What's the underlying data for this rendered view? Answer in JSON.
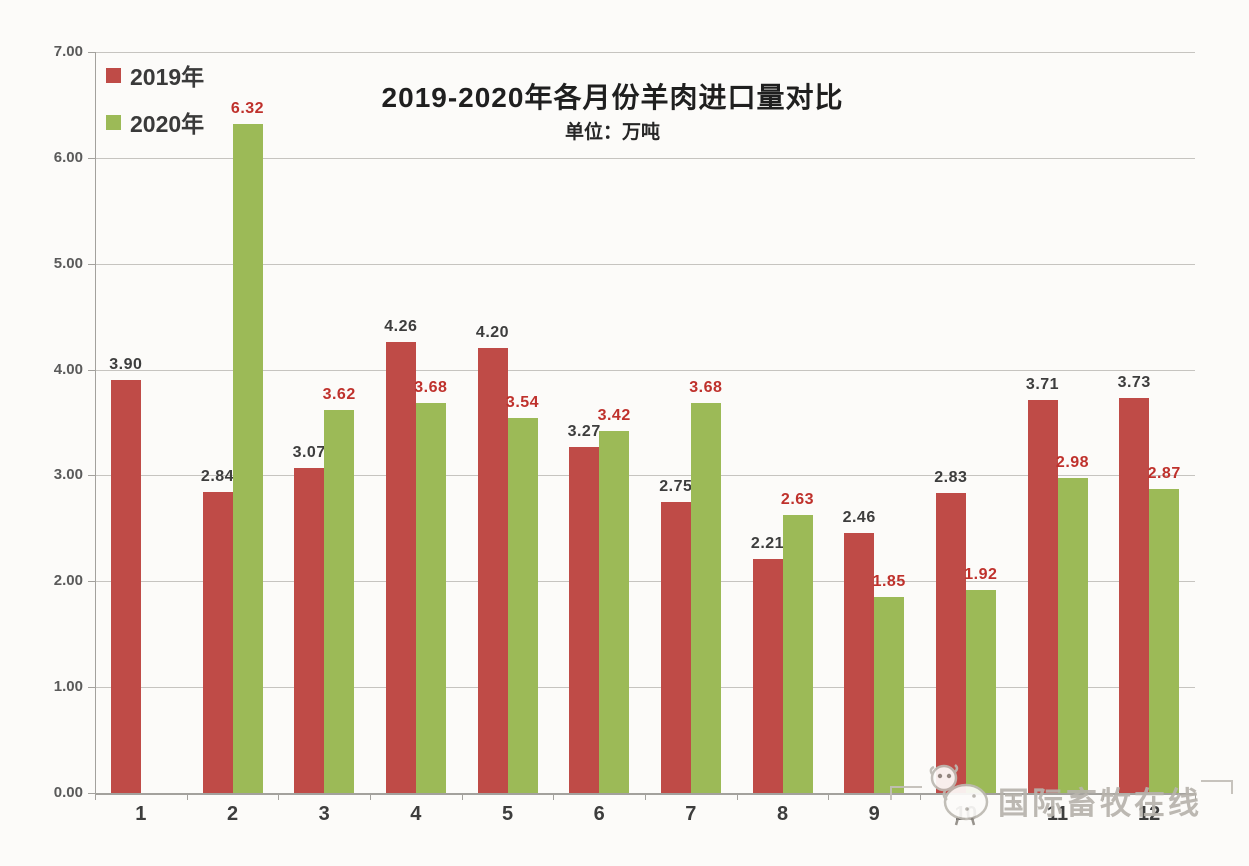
{
  "chart_data": {
    "type": "bar",
    "title": "2019-2020年各月份羊肉进口量对比",
    "subtitle": "单位：万吨",
    "categories": [
      "1",
      "2",
      "3",
      "4",
      "5",
      "6",
      "7",
      "8",
      "9",
      "10",
      "11",
      "12"
    ],
    "series": [
      {
        "name": "2019年",
        "color": "#bf4b47",
        "label_color": "#3d3d3d",
        "values": [
          3.9,
          2.84,
          3.07,
          4.26,
          4.2,
          3.27,
          2.75,
          2.21,
          2.46,
          2.83,
          3.71,
          3.73
        ]
      },
      {
        "name": "2020年",
        "color": "#9cba57",
        "label_color": "#bf312c",
        "values": [
          null,
          6.32,
          3.62,
          3.68,
          3.54,
          3.42,
          3.68,
          2.63,
          1.85,
          1.92,
          2.98,
          2.87
        ]
      }
    ],
    "y_ticks": [
      "0.00",
      "1.00",
      "2.00",
      "3.00",
      "4.00",
      "5.00",
      "6.00",
      "7.00"
    ],
    "ylim": [
      0,
      7
    ],
    "grid": true,
    "legend_position": "top-left",
    "value_label_decimals": 2
  },
  "watermark": {
    "text": "国际畜牧在线",
    "icon": "sheep-mascot"
  }
}
